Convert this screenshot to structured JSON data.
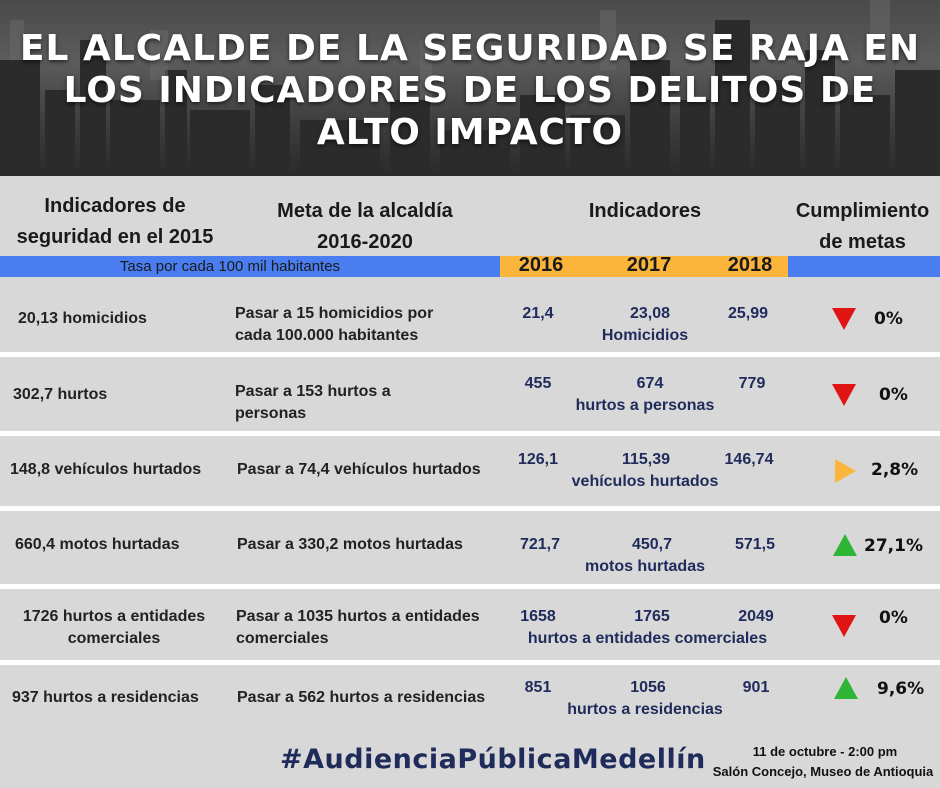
{
  "banner": {
    "title_lines": [
      "EL ALCALDE DE LA SEGURIDAD SE RAJA EN",
      "LOS INDICADORES DE LOS DELITOS DE",
      "ALTO IMPACTO"
    ]
  },
  "headers": {
    "col1": [
      "Indicadores de",
      "seguridad en el 2015"
    ],
    "col2": [
      "Meta de la alcaldía",
      "2016-2020"
    ],
    "col3": "Indicadores",
    "col4": [
      "Cumplimiento",
      "de metas"
    ],
    "rate_note": "Tasa por cada 100 mil habitantes",
    "years": [
      "2016",
      "2017",
      "2018"
    ]
  },
  "rows": [
    {
      "baseline": [
        "20,13 homicidios"
      ],
      "goal": [
        "Pasar a 15 homicidios por",
        "cada 100.000 habitantes"
      ],
      "v2016": "21,4",
      "v2017": "23,08",
      "v2018": "25,99",
      "label": "Homicidios",
      "trend": "down",
      "percent": "0%"
    },
    {
      "baseline": [
        "302,7 hurtos"
      ],
      "goal": [
        "Pasar a 153 hurtos a",
        "personas"
      ],
      "v2016": "455",
      "v2017": "674",
      "v2018": "779",
      "label": "hurtos a personas",
      "trend": "down",
      "percent": "0%"
    },
    {
      "baseline": [
        "148,8 vehículos hurtados"
      ],
      "goal": [
        "Pasar a 74,4 vehículos hurtados"
      ],
      "v2016": "126,1",
      "v2017": "115,39",
      "v2018": "146,74",
      "label": "vehículos hurtados",
      "trend": "right",
      "percent": "2,8%"
    },
    {
      "baseline": [
        "660,4 motos hurtadas"
      ],
      "goal": [
        "Pasar a 330,2 motos hurtadas"
      ],
      "v2016": "721,7",
      "v2017": "450,7",
      "v2018": "571,5",
      "label": "motos hurtadas",
      "trend": "up",
      "percent": "27,1%"
    },
    {
      "baseline": [
        "1726 hurtos a entidades",
        "comerciales"
      ],
      "goal": [
        "Pasar a 1035 hurtos a entidades",
        "comerciales"
      ],
      "v2016": "1658",
      "v2017": "1765",
      "v2018": "2049",
      "label": "hurtos a entidades comerciales",
      "trend": "down",
      "percent": "0%"
    },
    {
      "baseline": [
        "937 hurtos a residencias"
      ],
      "goal": [
        "Pasar a 562 hurtos a residencias"
      ],
      "v2016": "851",
      "v2017": "1056",
      "v2018": "901",
      "label": "hurtos a residencias",
      "trend": "up",
      "percent": "9,6%"
    }
  ],
  "footer": {
    "hashtag": "#AudienciaPúblicaMedellín",
    "event_time": "11 de octubre - 2:00 pm",
    "event_place": "Salón Concejo, Museo de Antioquia"
  },
  "colors": {
    "down": "#e11414",
    "up": "#2fb536",
    "right": "#fbb53b",
    "band_blue": "#4a7ef0",
    "band_yellow": "#fbb53b"
  }
}
